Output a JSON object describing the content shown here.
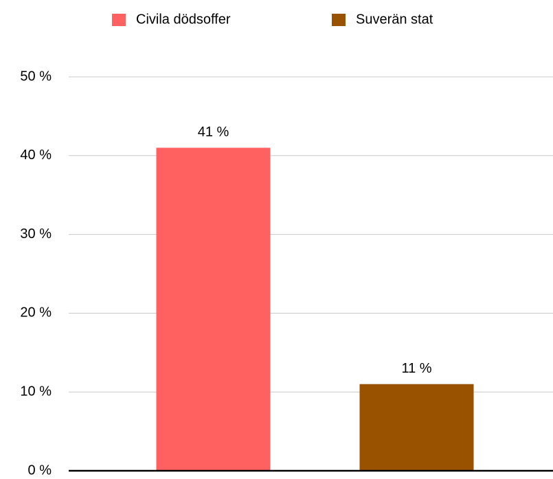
{
  "chart_data": {
    "type": "bar",
    "categories": [
      null
    ],
    "series": [
      {
        "name": "Civila dödsoffer",
        "color": "#ff6060",
        "values": [
          41
        ],
        "value_labels": [
          "41 %"
        ]
      },
      {
        "name": "Suverän stat",
        "color": "#995200",
        "values": [
          11
        ],
        "value_labels": [
          "11 %"
        ]
      }
    ],
    "ylim": [
      0,
      50
    ],
    "yticks": [
      {
        "value": 0,
        "label": "0 %"
      },
      {
        "value": 10,
        "label": "10 %"
      },
      {
        "value": 20,
        "label": "20 %"
      },
      {
        "value": 30,
        "label": "30 %"
      },
      {
        "value": 40,
        "label": "40 %"
      },
      {
        "value": 50,
        "label": "50 %"
      }
    ],
    "grid": true
  }
}
